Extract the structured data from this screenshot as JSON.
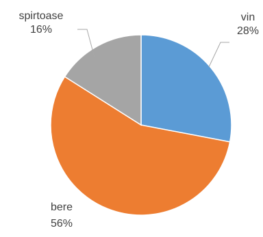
{
  "chart_data": {
    "type": "pie",
    "title": "",
    "categories": [
      "vin",
      "bere",
      "spirtoase"
    ],
    "values": [
      28,
      56,
      16
    ],
    "labels": [
      "28%",
      "56%",
      "16%"
    ],
    "colors": [
      "#5b9bd5",
      "#ed7d31",
      "#a5a5a5"
    ],
    "start_angle_deg": 0,
    "direction": "clockwise",
    "legend": "none",
    "data_labels": "outside-with-leader-lines"
  }
}
